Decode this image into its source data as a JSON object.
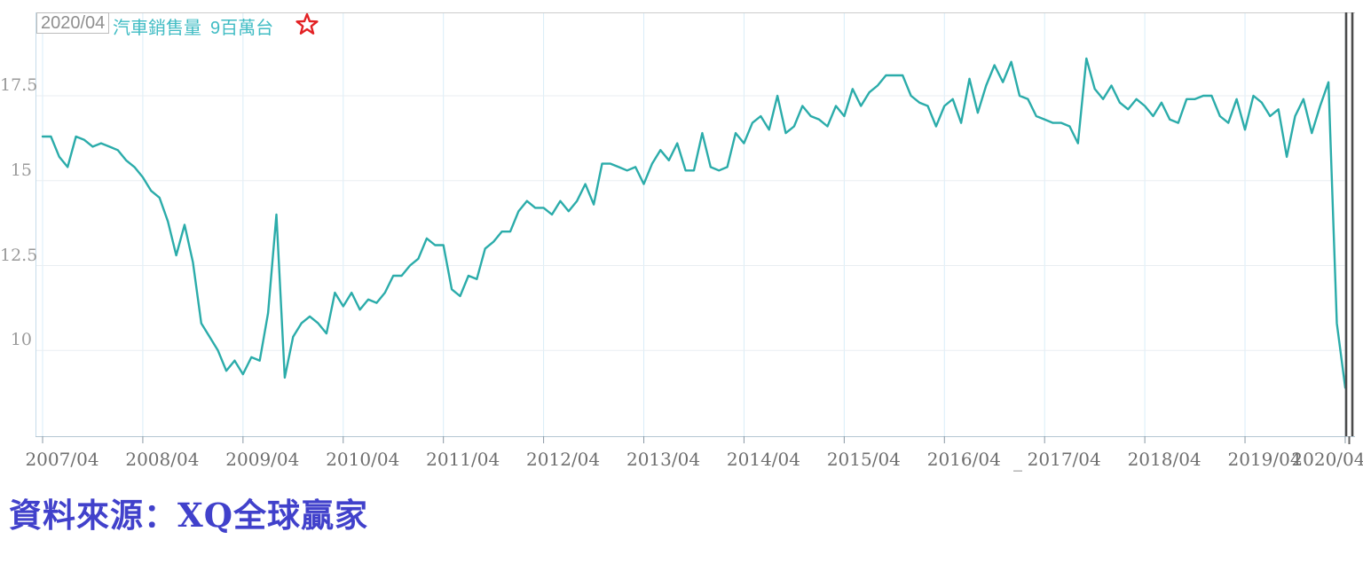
{
  "header": {
    "cursor_date": "2020/04",
    "series_label": "汽車銷售量",
    "series_value": "9",
    "series_unit": "百萬台"
  },
  "source_note": "資料來源：XQ全球贏家",
  "stray_mark": "_",
  "colors": {
    "line": "#2bacaa",
    "grid_horizontal": "#e9eef2",
    "grid_vertical": "#d9edf8",
    "axis_line": "#b4c6d2",
    "left_axis": "#c6dcea",
    "top_border": "#cccccc",
    "tick": "#8a98a4",
    "cursor_bar": "#4b4b4b",
    "star_red": "#e32124",
    "header_teal": "#41bcc4",
    "source_blue": "#4141cb"
  },
  "chart_data": {
    "type": "line",
    "title": "汽車銷售量",
    "unit": "百萬台",
    "frequency": "monthly",
    "x_start": "2007/04",
    "x_end": "2020/04",
    "x_tick_labels": [
      "2007/04",
      "2008/04",
      "2009/04",
      "2010/04",
      "2011/04",
      "2012/04",
      "2013/04",
      "2014/04",
      "2015/04",
      "2016/04",
      "2017/04",
      "2018/04",
      "2019/04",
      "2020/04"
    ],
    "y_ticks": [
      17.5,
      15,
      12.5,
      10
    ],
    "ylim": [
      7.5,
      20.0
    ],
    "grid": true,
    "legend_position": "top-left",
    "last_point": {
      "date": "2020/04",
      "value": 8.9,
      "displayed": "9百萬台"
    },
    "values": [
      16.3,
      16.3,
      15.7,
      15.4,
      16.3,
      16.2,
      16.0,
      16.1,
      16.0,
      15.9,
      15.6,
      15.4,
      15.1,
      14.7,
      14.5,
      13.8,
      12.8,
      13.7,
      12.6,
      10.8,
      10.4,
      10.0,
      9.4,
      9.7,
      9.3,
      9.8,
      9.7,
      11.1,
      14.0,
      9.2,
      10.4,
      10.8,
      11.0,
      10.8,
      10.5,
      11.7,
      11.3,
      11.7,
      11.2,
      11.5,
      11.4,
      11.7,
      12.2,
      12.2,
      12.5,
      12.7,
      13.3,
      13.1,
      13.1,
      11.8,
      11.6,
      12.2,
      12.1,
      13.0,
      13.2,
      13.5,
      13.5,
      14.1,
      14.4,
      14.2,
      14.2,
      14.0,
      14.4,
      14.1,
      14.4,
      14.9,
      14.3,
      15.5,
      15.5,
      15.4,
      15.3,
      15.4,
      14.9,
      15.5,
      15.9,
      15.6,
      16.1,
      15.3,
      15.3,
      16.4,
      15.4,
      15.3,
      15.4,
      16.4,
      16.1,
      16.7,
      16.9,
      16.5,
      17.5,
      16.4,
      16.6,
      17.2,
      16.9,
      16.8,
      16.6,
      17.2,
      16.9,
      17.7,
      17.2,
      17.6,
      17.8,
      18.1,
      18.1,
      18.1,
      17.5,
      17.3,
      17.2,
      16.6,
      17.2,
      17.4,
      16.7,
      18.0,
      17.0,
      17.8,
      18.4,
      17.9,
      18.5,
      17.5,
      17.4,
      16.9,
      16.8,
      16.7,
      16.7,
      16.6,
      16.1,
      18.6,
      17.7,
      17.4,
      17.8,
      17.3,
      17.1,
      17.4,
      17.2,
      16.9,
      17.3,
      16.8,
      16.7,
      17.4,
      17.4,
      17.5,
      17.5,
      16.9,
      16.7,
      17.4,
      16.5,
      17.5,
      17.3,
      16.9,
      17.1,
      15.7,
      16.9,
      17.4,
      16.4,
      17.2,
      17.9,
      10.8,
      8.9
    ]
  }
}
